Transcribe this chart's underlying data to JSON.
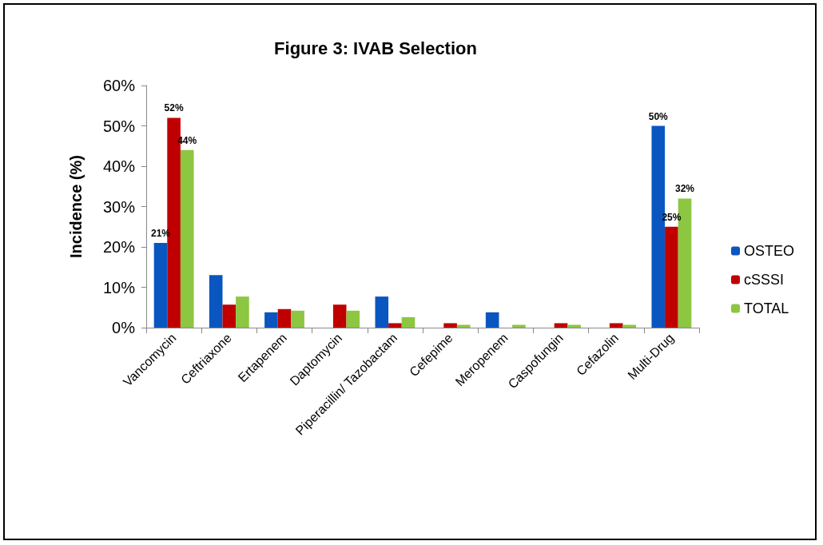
{
  "chart_data": {
    "type": "bar",
    "title": "Figure 3: IVAB Selection",
    "ylabel": "Incidence (%)",
    "categories": [
      "Vancomycin",
      "Ceftriaxone",
      "Ertapenem",
      "Daptomycin",
      "Piperacillin/ Tazobactam",
      "Cefepime",
      "Meropenem",
      "Caspofungin",
      "Cefazolin",
      "Multi-Drug"
    ],
    "series": [
      {
        "name": "OSTEO",
        "color": "#0a56c0",
        "values": [
          21,
          13,
          3.8,
          0,
          7.7,
          0,
          3.8,
          0,
          0,
          50
        ],
        "value_labels": [
          "21%",
          null,
          null,
          null,
          null,
          null,
          null,
          null,
          null,
          "50%"
        ]
      },
      {
        "name": "cSSSI",
        "color": "#c00000",
        "values": [
          52,
          5.7,
          4.6,
          5.7,
          1.1,
          1.1,
          0,
          1.1,
          1.1,
          25
        ],
        "value_labels": [
          "52%",
          null,
          null,
          null,
          null,
          null,
          null,
          null,
          null,
          "25%"
        ]
      },
      {
        "name": "TOTAL",
        "color": "#8dc641",
        "values": [
          44,
          7.7,
          4.2,
          4.2,
          2.6,
          0.7,
          0.7,
          0.7,
          0.7,
          32
        ],
        "value_labels": [
          "44%",
          null,
          null,
          null,
          null,
          null,
          null,
          null,
          null,
          "32%"
        ]
      }
    ],
    "ylim": [
      0,
      60
    ],
    "yticks": [
      {
        "value": 0,
        "label": "0%"
      },
      {
        "value": 10,
        "label": "10%"
      },
      {
        "value": 20,
        "label": "20%"
      },
      {
        "value": 30,
        "label": "30%"
      },
      {
        "value": 40,
        "label": "40%"
      },
      {
        "value": 50,
        "label": "50%"
      },
      {
        "value": 60,
        "label": "60%"
      }
    ],
    "grid": false,
    "legend": "right"
  }
}
